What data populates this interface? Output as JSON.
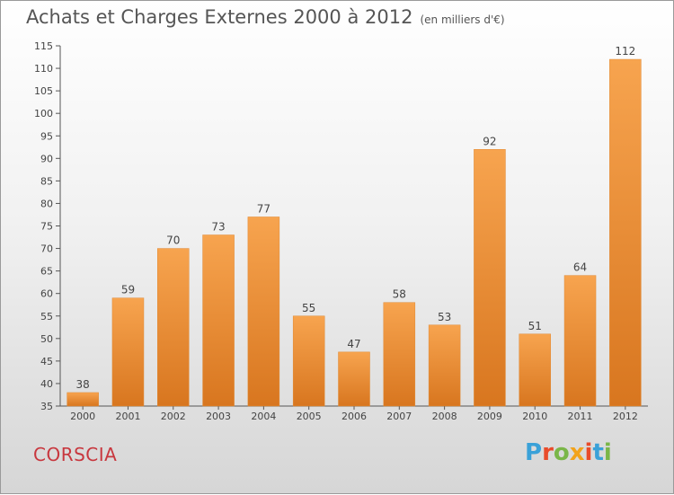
{
  "chart_data": {
    "type": "bar",
    "title": "Achats et Charges Externes 2000 à 2012",
    "subtitle": "(en milliers d'€)",
    "categories": [
      "2000",
      "2001",
      "2002",
      "2003",
      "2004",
      "2005",
      "2006",
      "2007",
      "2008",
      "2009",
      "2010",
      "2011",
      "2012"
    ],
    "values": [
      38,
      59,
      70,
      73,
      77,
      55,
      47,
      58,
      53,
      92,
      51,
      64,
      112
    ],
    "ylim": [
      35,
      115
    ],
    "yticks": [
      35,
      40,
      45,
      50,
      55,
      60,
      65,
      70,
      75,
      80,
      85,
      90,
      95,
      100,
      105,
      110,
      115
    ],
    "grid": false,
    "bar_color": "#f0963e"
  },
  "footer": {
    "place": "CORSCIA",
    "logo": "Proxiti"
  },
  "colors": {
    "place": "#c8373e",
    "logo_letters": [
      "#3aa1d8",
      "#e94b2a",
      "#7ab648",
      "#f2a31b",
      "#e94b2a",
      "#3aa1d8",
      "#7ab648"
    ]
  }
}
